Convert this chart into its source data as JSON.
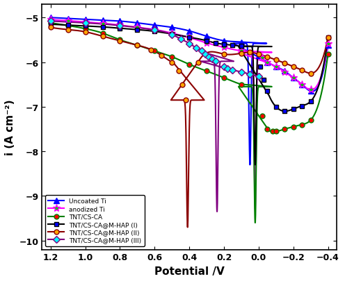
{
  "xlabel": "Potential /V",
  "ylabel": "i (A cm⁻²)",
  "xlim": [
    1.25,
    -0.45
  ],
  "ylim": [
    -10.2,
    -4.7
  ],
  "yticks": [
    -10,
    -9,
    -8,
    -7,
    -6,
    -5
  ],
  "xticks": [
    1.2,
    1.0,
    0.8,
    0.6,
    0.4,
    0.2,
    0.0,
    -0.2,
    -0.4
  ],
  "background": "#ffffff",
  "curves": [
    {
      "name": "Uncoated Ti",
      "linecolor": "blue",
      "marker": "^",
      "markercolor": "blue",
      "markersize": 6,
      "lw": 1.5,
      "left_x": [
        1.2,
        1.1,
        1.0,
        0.9,
        0.8,
        0.7,
        0.6,
        0.5,
        0.4,
        0.3,
        0.2,
        0.1,
        0.05
      ],
      "left_y": [
        -5.0,
        -5.02,
        -5.04,
        -5.06,
        -5.08,
        -5.12,
        -5.17,
        -5.22,
        -5.3,
        -5.42,
        -5.52,
        -5.55,
        -5.58
      ],
      "x_corr": 0.05,
      "y_corr": -8.3,
      "right_x": [
        0.05,
        0.0,
        -0.05,
        -0.1,
        -0.15,
        -0.2,
        -0.25,
        -0.3,
        -0.4
      ],
      "right_y": [
        -5.58,
        -5.85,
        -6.0,
        -6.1,
        -6.2,
        -6.35,
        -6.5,
        -6.65,
        -5.62
      ],
      "marker_left_idx": [
        0,
        1,
        2,
        3,
        4,
        5,
        6,
        7,
        8,
        9,
        10,
        11
      ],
      "marker_right_idx": [
        1,
        2,
        3,
        4,
        5,
        6,
        7,
        8
      ]
    },
    {
      "name": "anodized Ti",
      "linecolor": "magenta",
      "marker": "*",
      "markercolor": "#00cc00",
      "markersize": 8,
      "lw": 1.5,
      "left_x": [
        1.2,
        1.1,
        1.0,
        0.9,
        0.8,
        0.7,
        0.6,
        0.5,
        0.4,
        0.3,
        0.2,
        0.1,
        0.05
      ],
      "left_y": [
        -5.05,
        -5.07,
        -5.1,
        -5.13,
        -5.17,
        -5.22,
        -5.27,
        -5.35,
        -5.45,
        -5.57,
        -5.67,
        -5.75,
        -5.78
      ],
      "x_corr": 0.02,
      "y_corr": -9.3,
      "right_x": [
        0.02,
        -0.02,
        -0.05,
        -0.1,
        -0.15,
        -0.2,
        -0.25,
        -0.3,
        -0.4
      ],
      "right_y": [
        -5.78,
        -5.9,
        -6.0,
        -6.1,
        -6.22,
        -6.35,
        -6.5,
        -6.62,
        -5.58
      ],
      "marker_left_idx": [
        0,
        1,
        2,
        3,
        4,
        5,
        6,
        7,
        8,
        9,
        10,
        11
      ],
      "marker_right_idx": [
        1,
        2,
        3,
        4,
        5,
        6,
        7,
        8
      ]
    },
    {
      "name": "TNT/CS-CA",
      "linecolor": "green",
      "marker": "o",
      "markercolor": "red",
      "markersize": 5,
      "lw": 1.5,
      "left_x": [
        1.2,
        1.1,
        1.0,
        0.9,
        0.8,
        0.7,
        0.6,
        0.5,
        0.4,
        0.3,
        0.2,
        0.1,
        0.05
      ],
      "left_y": [
        -5.12,
        -5.18,
        -5.25,
        -5.35,
        -5.5,
        -5.62,
        -5.75,
        -5.88,
        -6.05,
        -6.2,
        -6.35,
        -6.5,
        -6.55
      ],
      "x_corr": 0.02,
      "y_corr": -9.6,
      "right_x": [
        0.02,
        -0.02,
        -0.05,
        -0.08,
        -0.1,
        -0.15,
        -0.2,
        -0.25,
        -0.3,
        -0.4
      ],
      "right_y": [
        -6.55,
        -7.2,
        -7.5,
        -7.55,
        -7.55,
        -7.5,
        -7.45,
        -7.4,
        -7.3,
        -5.82
      ],
      "marker_left_idx": [
        0,
        1,
        2,
        3,
        4,
        5,
        6,
        7,
        8,
        9,
        10,
        11
      ],
      "marker_right_idx": [
        1,
        2,
        3,
        4,
        5,
        6,
        7,
        8,
        9
      ]
    },
    {
      "name": "TNT/CS-CA@M-HAP (I)",
      "linecolor": "black",
      "marker": "s",
      "markercolor": "blue",
      "markersize": 5,
      "lw": 1.5,
      "left_x": [
        1.2,
        1.1,
        1.0,
        0.9,
        0.8,
        0.7,
        0.6,
        0.5,
        0.4,
        0.3,
        0.25,
        0.2,
        0.15,
        0.1,
        0.05
      ],
      "left_y": [
        -5.15,
        -5.17,
        -5.19,
        -5.21,
        -5.24,
        -5.27,
        -5.31,
        -5.37,
        -5.44,
        -5.52,
        -5.57,
        -5.6,
        -5.62,
        -5.64,
        -5.65
      ],
      "x_corr": 0.02,
      "y_corr": -8.3,
      "right_x": [
        0.02,
        -0.01,
        -0.03,
        -0.05,
        -0.1,
        -0.15,
        -0.2,
        -0.25,
        -0.3,
        -0.4
      ],
      "right_y": [
        -5.65,
        -6.1,
        -6.4,
        -6.65,
        -7.0,
        -7.1,
        -7.05,
        -6.98,
        -6.88,
        -5.45
      ],
      "marker_left_idx": [
        0,
        1,
        2,
        3,
        4,
        5,
        6,
        7,
        8,
        9,
        10,
        11,
        12,
        13
      ],
      "marker_right_idx": [
        1,
        2,
        3,
        4,
        5,
        6,
        7,
        8,
        9
      ]
    },
    {
      "name": "TNT/CS-CA@M-HAP (II)",
      "linecolor": "#8b0000",
      "marker": "o",
      "markercolor": "orange",
      "markersize": 5,
      "lw": 1.5,
      "left_x": [
        1.2,
        1.1,
        1.0,
        0.9,
        0.8,
        0.7,
        0.62,
        0.56,
        0.5,
        0.46,
        0.44,
        0.42
      ],
      "left_y": [
        -5.22,
        -5.27,
        -5.32,
        -5.42,
        -5.52,
        -5.62,
        -5.72,
        -5.85,
        -6.0,
        -6.2,
        -6.5,
        -6.85
      ],
      "x_corr": 0.41,
      "y_corr": -9.7,
      "right_x": [
        0.42,
        0.35,
        0.2,
        0.1,
        0.05,
        0.0,
        -0.05,
        -0.1,
        -0.15,
        -0.2,
        -0.25,
        -0.3,
        -0.4
      ],
      "right_y": [
        -6.85,
        -6.0,
        -5.82,
        -5.8,
        -5.78,
        -5.82,
        -5.88,
        -5.95,
        -6.02,
        -6.1,
        -6.18,
        -6.25,
        -5.45
      ],
      "marker_left_idx": [
        0,
        1,
        2,
        3,
        4,
        5,
        6,
        7,
        8,
        9,
        10
      ],
      "marker_right_idx": [
        0,
        1,
        2,
        3,
        4,
        5,
        6,
        7,
        8,
        9,
        10,
        11,
        12
      ]
    },
    {
      "name": "TNT/CS-CA@M-HAP (III)",
      "linecolor": "purple",
      "marker": "D",
      "markercolor": "cyan",
      "markersize": 5,
      "lw": 1.5,
      "left_x": [
        1.2,
        1.0,
        0.8,
        0.6,
        0.5,
        0.45,
        0.4,
        0.36,
        0.33,
        0.31,
        0.29,
        0.27,
        0.25
      ],
      "left_y": [
        -5.08,
        -5.12,
        -5.18,
        -5.28,
        -5.38,
        -5.48,
        -5.58,
        -5.68,
        -5.75,
        -5.82,
        -5.88,
        -5.93,
        -5.98
      ],
      "x_corr": 0.24,
      "y_corr": -9.35,
      "right_x": [
        0.25,
        0.2,
        0.18,
        0.15,
        0.1,
        0.05,
        0.0
      ],
      "right_y": [
        -5.98,
        -6.1,
        -6.15,
        -6.18,
        -6.22,
        -6.27,
        -6.32
      ],
      "marker_left_idx": [
        0,
        1,
        2,
        3,
        4,
        5,
        6,
        7,
        8,
        9,
        10,
        11,
        12
      ],
      "marker_right_idx": [
        1,
        2,
        3,
        4,
        5,
        6
      ]
    }
  ]
}
